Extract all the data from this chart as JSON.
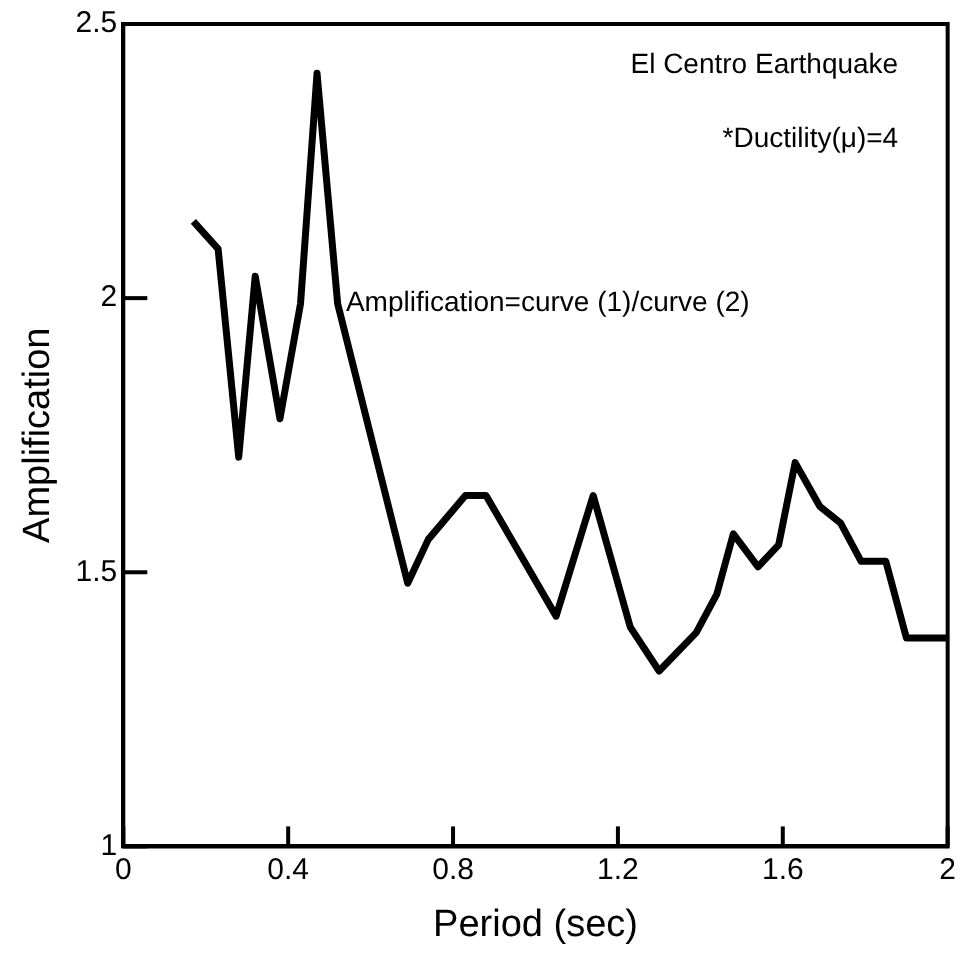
{
  "chart_data": {
    "type": "line",
    "xlabel": "Period (sec)",
    "ylabel": "Amplification",
    "annotations": [
      "El Centro Earthquake",
      "*Ductility(μ)=4",
      "Amplification=curve (1)/curve (2)"
    ],
    "series": [
      {
        "color": "#000000",
        "x": [
          0.17,
          0.23,
          0.28,
          0.32,
          0.38,
          0.43,
          0.47,
          0.52,
          0.69,
          0.74,
          0.83,
          0.88,
          1.05,
          1.14,
          1.23,
          1.3,
          1.39,
          1.44,
          1.48,
          1.54,
          1.59,
          1.63,
          1.69,
          1.74,
          1.79,
          1.85,
          1.9,
          2.0
        ],
        "values": [
          2.14,
          2.09,
          1.71,
          2.04,
          1.78,
          1.99,
          2.41,
          1.99,
          1.48,
          1.56,
          1.64,
          1.64,
          1.42,
          1.64,
          1.4,
          1.32,
          1.39,
          1.46,
          1.57,
          1.51,
          1.55,
          1.7,
          1.62,
          1.59,
          1.52,
          1.52,
          1.38,
          1.38
        ]
      }
    ],
    "xlim": [
      0,
      2
    ],
    "xticks": [
      0,
      0.4,
      0.8,
      1.2,
      1.6,
      2
    ],
    "ylim": [
      1,
      2.5
    ],
    "yticks": [
      1,
      1.5,
      2,
      2.5
    ],
    "grid": false,
    "legend": false,
    "marker": "none",
    "line_style": "solid"
  }
}
